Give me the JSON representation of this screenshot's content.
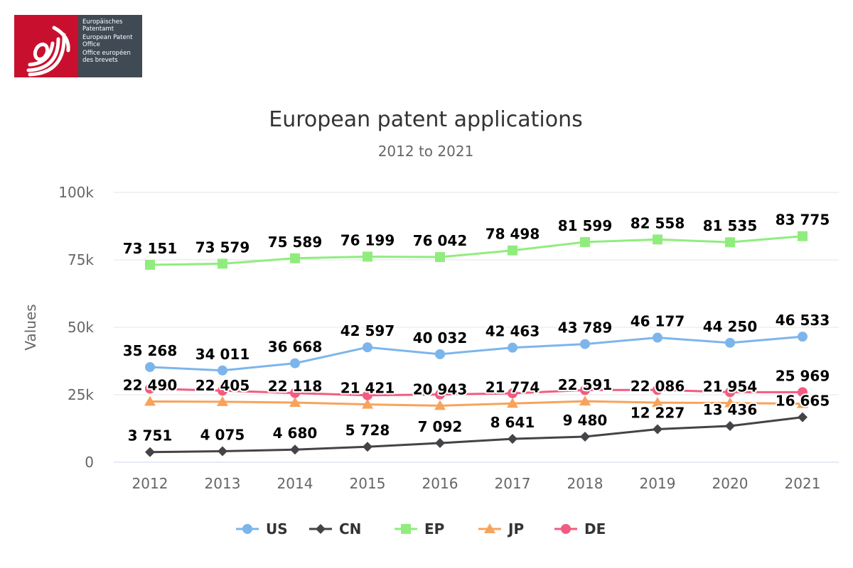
{
  "logo": {
    "lines": [
      "Europäisches Patentamt",
      "European Patent Office",
      "Office européen des brevets"
    ]
  },
  "chart_data": {
    "type": "line",
    "title": "European patent applications",
    "subtitle": "2012 to 2021",
    "xlabel": "",
    "ylabel": "Values",
    "ylim": [
      0,
      100000
    ],
    "yticks": [
      0,
      25000,
      50000,
      75000,
      100000
    ],
    "ytick_labels": [
      "0",
      "25k",
      "50k",
      "75k",
      "100k"
    ],
    "categories": [
      "2012",
      "2013",
      "2014",
      "2015",
      "2016",
      "2017",
      "2018",
      "2019",
      "2020",
      "2021"
    ],
    "grid": true,
    "legend": "bottom-center",
    "series": [
      {
        "name": "US",
        "color": "#7cb5ec",
        "marker": "circle",
        "values": [
          35268,
          34011,
          36668,
          42597,
          40032,
          42463,
          43789,
          46177,
          44250,
          46533
        ],
        "labels": [
          "35 268",
          "34 011",
          "36 668",
          "42 597",
          "40 032",
          "42 463",
          "43 789",
          "46 177",
          "44 250",
          "46 533"
        ],
        "hidden_labels": []
      },
      {
        "name": "CN",
        "color": "#434348",
        "marker": "diamond",
        "values": [
          3751,
          4075,
          4680,
          5728,
          7092,
          8641,
          9480,
          12227,
          13436,
          16665
        ],
        "labels": [
          "3 751",
          "4 075",
          "4 680",
          "5 728",
          "7 092",
          "8 641",
          "9 480",
          "12 227",
          "13 436",
          "16 665"
        ],
        "hidden_labels": []
      },
      {
        "name": "EP",
        "color": "#90ed7d",
        "marker": "square",
        "values": [
          73151,
          73579,
          75589,
          76199,
          76042,
          78498,
          81599,
          82558,
          81535,
          83775
        ],
        "labels": [
          "73 151",
          "73 579",
          "75 589",
          "76 199",
          "76 042",
          "78 498",
          "81 599",
          "82 558",
          "81 535",
          "83 775"
        ],
        "hidden_labels": []
      },
      {
        "name": "JP",
        "color": "#f7a35c",
        "marker": "triangle",
        "values": [
          22490,
          22405,
          22118,
          21421,
          20943,
          21774,
          22591,
          22086,
          21954,
          21681
        ],
        "labels": [
          "22 490",
          "22 405",
          "22 118",
          "21 421",
          "20 943",
          "21 774",
          "22 591",
          "22 086",
          "21 954",
          "21 681"
        ],
        "hidden_labels": [
          9
        ]
      },
      {
        "name": "DE",
        "color": "#f15c80",
        "marker": "circle",
        "values": [
          27248,
          26510,
          25633,
          24807,
          25086,
          25539,
          26734,
          26805,
          25954,
          25969
        ],
        "labels": [
          "27 248",
          "26 510",
          "25 633",
          "24 807",
          "25 086",
          "25 539",
          "26 734",
          "26 805",
          "25 954",
          "25 969"
        ],
        "hidden_labels": [
          0,
          1,
          2,
          3,
          4,
          5,
          6,
          7,
          8
        ]
      }
    ]
  }
}
